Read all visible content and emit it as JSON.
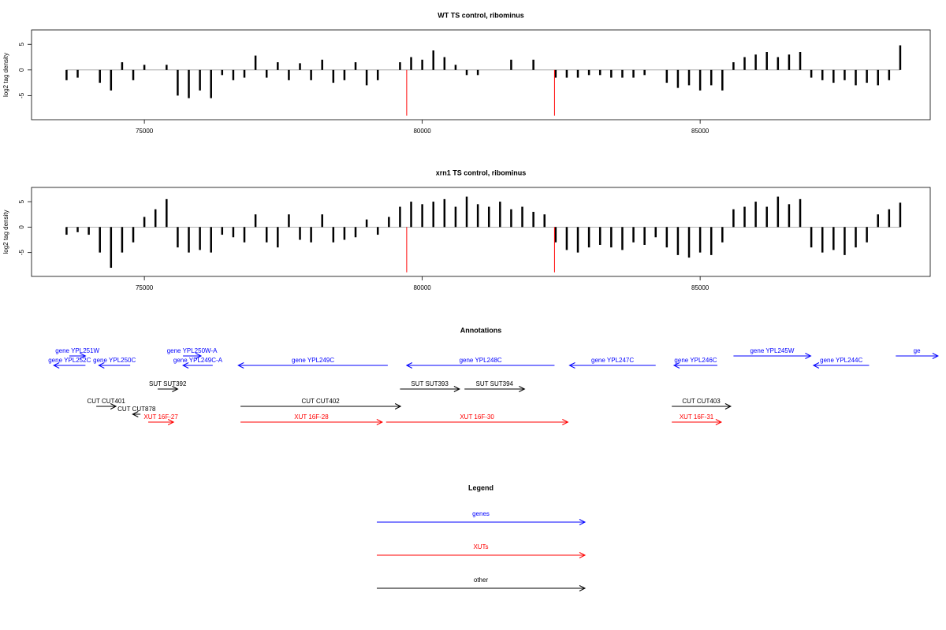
{
  "chart_data": [
    {
      "type": "bar",
      "title": "WT TS control, ribominus",
      "y_label": "log2 tag density",
      "x": [
        73600,
        73800,
        74000,
        74200,
        74400,
        74600,
        74800,
        75000,
        75200,
        75400,
        75600,
        75800,
        76000,
        76200,
        76400,
        76600,
        76800,
        77000,
        77200,
        77400,
        77600,
        77800,
        78000,
        78200,
        78400,
        78600,
        78800,
        79000,
        79200,
        79400,
        79600,
        79800,
        80000,
        80200,
        80400,
        80600,
        80800,
        81000,
        81200,
        81400,
        81600,
        81800,
        82000,
        82200,
        82400,
        82600,
        82800,
        83000,
        83200,
        83400,
        83600,
        83800,
        84000,
        84200,
        84400,
        84600,
        84800,
        85000,
        85200,
        85400,
        85600,
        85800,
        86000,
        86200,
        86400,
        86600,
        86800,
        87000,
        87200,
        87400,
        87600,
        87800,
        88000,
        88200,
        88400,
        88600
      ],
      "values": [
        -2,
        -1.5,
        null,
        -2.5,
        -4,
        1.5,
        -2,
        1,
        null,
        1,
        -5,
        -5.5,
        -4,
        -5.5,
        -1,
        -2,
        -1.5,
        2.8,
        -1.5,
        1.5,
        -2,
        1.3,
        -2,
        2,
        -2.5,
        -2,
        1.5,
        -3,
        -2,
        null,
        1.5,
        2.5,
        2,
        3.8,
        2.5,
        1,
        -1,
        -1,
        null,
        null,
        2,
        null,
        2,
        null,
        -1.5,
        -1.5,
        -1.5,
        -1,
        -1,
        -1.5,
        -1.5,
        -1.5,
        -1,
        null,
        -2.5,
        -3.5,
        -3,
        -4,
        -3,
        -4,
        1.5,
        2.5,
        3,
        3.5,
        2.5,
        3,
        3.5,
        -1.5,
        -2,
        -2.5,
        -2,
        -3,
        -2.5,
        -3,
        -2,
        4.8
      ],
      "color": "#000000",
      "xlim": [
        72970,
        89140
      ],
      "ylim": [
        -9.7,
        7.8
      ],
      "xticks": [
        75000,
        80000,
        85000
      ],
      "yticks": [
        -5,
        0,
        5
      ],
      "markers": {
        "x": [
          79720,
          82380
        ],
        "values": [
          -8.9,
          -8.9
        ],
        "color": "#ff0000"
      }
    },
    {
      "type": "bar",
      "title": "xrn1 TS control, ribominus",
      "y_label": "log2 tag density",
      "x": [
        73600,
        73800,
        74000,
        74200,
        74400,
        74600,
        74800,
        75000,
        75200,
        75400,
        75600,
        75800,
        76000,
        76200,
        76400,
        76600,
        76800,
        77000,
        77200,
        77400,
        77600,
        77800,
        78000,
        78200,
        78400,
        78600,
        78800,
        79000,
        79200,
        79400,
        79600,
        79800,
        80000,
        80200,
        80400,
        80600,
        80800,
        81000,
        81200,
        81400,
        81600,
        81800,
        82000,
        82200,
        82400,
        82600,
        82800,
        83000,
        83200,
        83400,
        83600,
        83800,
        84000,
        84200,
        84400,
        84600,
        84800,
        85000,
        85200,
        85400,
        85600,
        85800,
        86000,
        86200,
        86400,
        86600,
        86800,
        87000,
        87200,
        87400,
        87600,
        87800,
        88000,
        88200,
        88400,
        88600
      ],
      "values": [
        -1.5,
        -1,
        -1.5,
        -5,
        -8,
        -5,
        -3,
        2,
        3.5,
        5.5,
        -4,
        -5,
        -4.5,
        -5,
        -1.5,
        -2,
        -3,
        2.5,
        -3,
        -4,
        2.5,
        -2.5,
        -3,
        2.5,
        -3,
        -2.5,
        -2,
        1.5,
        -1.5,
        2,
        4,
        5,
        4.5,
        5,
        5.5,
        4,
        6,
        4.5,
        4,
        5,
        3.5,
        4,
        3,
        2.5,
        -3,
        -4.5,
        -5,
        -4,
        -3.5,
        -4,
        -4.5,
        -3,
        -3.5,
        -2,
        -4,
        -5.5,
        -6,
        -5,
        -5.5,
        -3,
        3.5,
        4,
        5,
        4,
        6,
        4.5,
        5.5,
        -4,
        -5,
        -4.5,
        -5.5,
        -4,
        -3,
        2.5,
        3.5,
        4.8
      ],
      "color": "#000000",
      "xlim": [
        72970,
        89140
      ],
      "ylim": [
        -9.7,
        7.8
      ],
      "xticks": [
        75000,
        80000,
        85000
      ],
      "yticks": [
        -5,
        0,
        5
      ],
      "markers": {
        "x": [
          79720,
          82380
        ],
        "values": [
          -8.9,
          -8.9
        ],
        "color": "#ff0000"
      }
    },
    {
      "type": "annotation",
      "title": "Annotations",
      "xlim": [
        72970,
        89140
      ],
      "features": [
        {
          "name": "gene YPL251W",
          "start": 73650,
          "end": 73940,
          "strand": "+",
          "color": "#0000ff"
        },
        {
          "name": "gene YPL252C",
          "start": 73370,
          "end": 73940,
          "strand": "-",
          "color": "#0000ff"
        },
        {
          "name": "gene YPL250C",
          "start": 74180,
          "end": 74745,
          "strand": "-",
          "color": "#0000ff"
        },
        {
          "name": "gene YPL250W-A",
          "start": 75695,
          "end": 76020,
          "strand": "+",
          "color": "#0000ff"
        },
        {
          "name": "gene YPL249C-A",
          "start": 75695,
          "end": 76230,
          "strand": "-",
          "color": "#0000ff"
        },
        {
          "name": "gene YPL249C",
          "start": 76690,
          "end": 79380,
          "strand": "-",
          "color": "#0000ff"
        },
        {
          "name": "gene YPL248C",
          "start": 79720,
          "end": 82380,
          "strand": "-",
          "color": "#0000ff"
        },
        {
          "name": "gene YPL247C",
          "start": 82650,
          "end": 84200,
          "strand": "-",
          "color": "#0000ff"
        },
        {
          "name": "gene YPL246C",
          "start": 84530,
          "end": 85310,
          "strand": "-",
          "color": "#0000ff"
        },
        {
          "name": "gene YPL245W",
          "start": 85600,
          "end": 86990,
          "strand": "+",
          "color": "#0000ff"
        },
        {
          "name": "gene YPL244C",
          "start": 87040,
          "end": 88040,
          "strand": "-",
          "color": "#0000ff"
        },
        {
          "name": "ge",
          "start": 88520,
          "end": 89280,
          "strand": "+",
          "color": "#0000ff"
        },
        {
          "name": "SUT SUT392",
          "start": 75240,
          "end": 75600,
          "strand": "+",
          "color": "#000000"
        },
        {
          "name": "CUT CUT401",
          "start": 74135,
          "end": 74490,
          "strand": "+",
          "color": "#000000"
        },
        {
          "name": "CUT CUT878",
          "start": 74790,
          "end": 74930,
          "strand": "-",
          "color": "#000000"
        },
        {
          "name": "CUT CUT402",
          "start": 76730,
          "end": 79610,
          "strand": "+",
          "color": "#000000"
        },
        {
          "name": "SUT SUT393",
          "start": 79600,
          "end": 80670,
          "strand": "+",
          "color": "#000000"
        },
        {
          "name": "SUT SUT394",
          "start": 80760,
          "end": 81840,
          "strand": "+",
          "color": "#000000"
        },
        {
          "name": "CUT CUT403",
          "start": 84490,
          "end": 85550,
          "strand": "+",
          "color": "#000000"
        },
        {
          "name": "XUT 16F-27",
          "start": 75070,
          "end": 75525,
          "strand": "+",
          "color": "#ff0000"
        },
        {
          "name": "XUT 16F-28",
          "start": 76730,
          "end": 79280,
          "strand": "+",
          "color": "#ff0000"
        },
        {
          "name": "XUT 16F-30",
          "start": 79350,
          "end": 82620,
          "strand": "+",
          "color": "#ff0000"
        },
        {
          "name": "XUT 16F-31",
          "start": 84490,
          "end": 85380,
          "strand": "+",
          "color": "#ff0000"
        }
      ]
    },
    {
      "type": "legend",
      "title": "Legend",
      "entries": [
        {
          "name": "genes",
          "color": "#0000ff"
        },
        {
          "name": "XUTs",
          "color": "#ff0000"
        },
        {
          "name": "other",
          "color": "#000000"
        }
      ]
    }
  ]
}
